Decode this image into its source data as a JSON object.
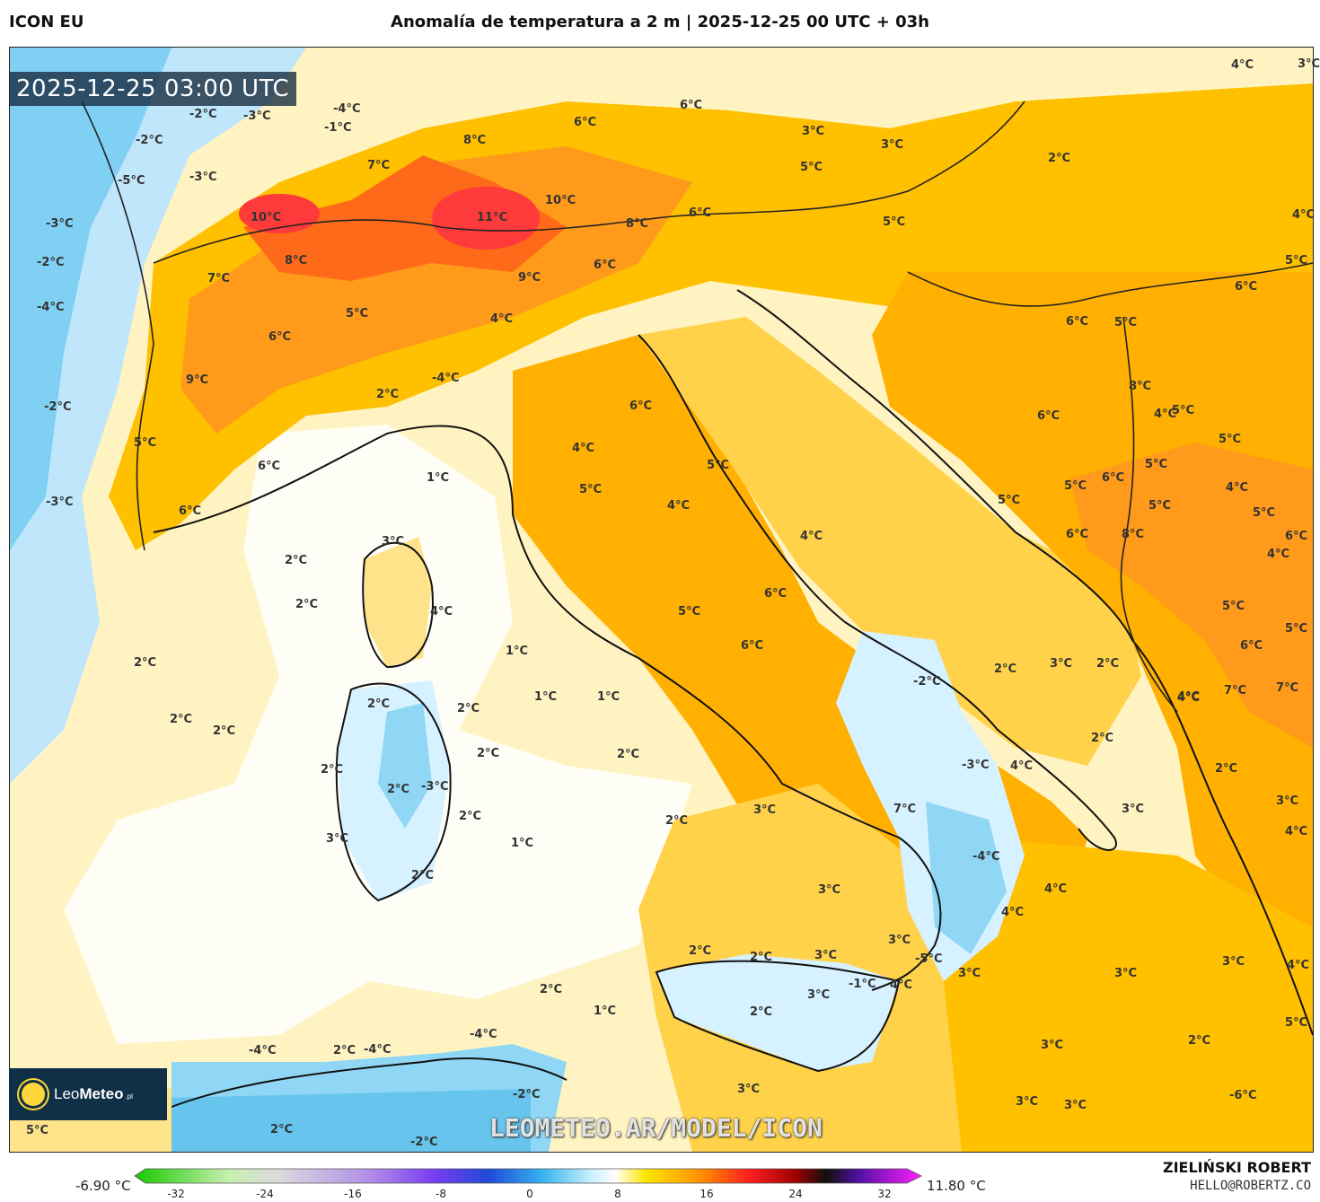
{
  "header": {
    "model": "ICON EU",
    "title": "Anomalía de temperatura a 2 m | 2025-12-25 00 UTC + 03h"
  },
  "map": {
    "valid_time": "2025-12-25 03:00 UTC",
    "watermark": "LEOMETEO.AR/MODEL/ICON",
    "labels": [
      {
        "text": "-4°C"
      },
      {
        "text": "-2°C"
      },
      {
        "text": "-3°C"
      },
      {
        "text": "-1°C"
      },
      {
        "text": "-2°C"
      },
      {
        "text": "-3°C"
      },
      {
        "text": "-5°C"
      },
      {
        "text": "-3°C"
      },
      {
        "text": "-2°C"
      },
      {
        "text": "-4°C"
      },
      {
        "text": "-2°C"
      },
      {
        "text": "-3°C"
      },
      {
        "text": "8°C"
      },
      {
        "text": "6°C"
      },
      {
        "text": "7°C"
      },
      {
        "text": "10°C"
      },
      {
        "text": "11°C"
      },
      {
        "text": "10°C"
      },
      {
        "text": "8°C"
      },
      {
        "text": "6°C"
      },
      {
        "text": "7°C"
      },
      {
        "text": "8°C"
      },
      {
        "text": "6°C"
      },
      {
        "text": "9°C"
      },
      {
        "text": "5°C"
      },
      {
        "text": "4°C"
      },
      {
        "text": "6°C"
      },
      {
        "text": "9°C"
      },
      {
        "text": "5°C"
      },
      {
        "text": "6°C"
      },
      {
        "text": "6°C"
      },
      {
        "text": "2°C"
      },
      {
        "text": "-4°C"
      },
      {
        "text": "6°C"
      },
      {
        "text": "4°C"
      },
      {
        "text": "5°C"
      },
      {
        "text": "5°C"
      },
      {
        "text": "4°C"
      },
      {
        "text": "4°C"
      },
      {
        "text": "6°C"
      },
      {
        "text": "5°C"
      },
      {
        "text": "6°C"
      },
      {
        "text": "1°C"
      },
      {
        "text": "3°C"
      },
      {
        "text": "2°C"
      },
      {
        "text": "2°C"
      },
      {
        "text": "4°C"
      },
      {
        "text": "2°C"
      },
      {
        "text": "1°C"
      },
      {
        "text": "2°C"
      },
      {
        "text": "2°C"
      },
      {
        "text": "2°C"
      },
      {
        "text": "2°C"
      },
      {
        "text": "1°C"
      },
      {
        "text": "1°C"
      },
      {
        "text": "2°C"
      },
      {
        "text": "2°C"
      },
      {
        "text": "2°C"
      },
      {
        "text": "-3°C"
      },
      {
        "text": "2°C"
      },
      {
        "text": "2°C"
      },
      {
        "text": "3°C"
      },
      {
        "text": "2°C"
      },
      {
        "text": "1°C"
      },
      {
        "text": "2°C"
      },
      {
        "text": "3°C"
      },
      {
        "text": "2°C"
      },
      {
        "text": "-2°C"
      },
      {
        "text": "3°C"
      },
      {
        "text": "2°C"
      },
      {
        "text": "3°C"
      },
      {
        "text": "-3°C"
      },
      {
        "text": "4°C"
      },
      {
        "text": "7°C"
      },
      {
        "text": "3°C"
      },
      {
        "text": "-4°C"
      },
      {
        "text": "4°C"
      },
      {
        "text": "4°C"
      },
      {
        "text": "3°C"
      },
      {
        "text": "3°C"
      },
      {
        "text": "3°C"
      },
      {
        "text": "-5°C"
      },
      {
        "text": "3°C"
      },
      {
        "text": "2°C"
      },
      {
        "text": "-1°C"
      },
      {
        "text": "4°C"
      },
      {
        "text": "3°C"
      },
      {
        "text": "2°C"
      },
      {
        "text": "2°C"
      },
      {
        "text": "1°C"
      },
      {
        "text": "2°C"
      },
      {
        "text": "3°C"
      },
      {
        "text": "2°C"
      },
      {
        "text": "3°C"
      },
      {
        "text": "3°C"
      },
      {
        "text": "3°C"
      },
      {
        "text": "-6°C"
      },
      {
        "text": "-4°C"
      },
      {
        "text": "2°C"
      },
      {
        "text": "-4°C"
      },
      {
        "text": "-4°C"
      },
      {
        "text": "-2°C"
      },
      {
        "text": "2°C"
      },
      {
        "text": "-2°C"
      },
      {
        "text": "5°C"
      },
      {
        "text": "3°C"
      },
      {
        "text": "4°C"
      },
      {
        "text": "5°C"
      },
      {
        "text": "4°C"
      },
      {
        "text": "3°C"
      },
      {
        "text": "2°C"
      },
      {
        "text": "2°C"
      },
      {
        "text": "4°C"
      },
      {
        "text": "5°C"
      },
      {
        "text": "4°C"
      },
      {
        "text": "6°C"
      },
      {
        "text": "5°C"
      },
      {
        "text": "4°C"
      },
      {
        "text": "5°C"
      },
      {
        "text": "5°C"
      },
      {
        "text": "5°C"
      },
      {
        "text": "6°C"
      },
      {
        "text": "5°C"
      },
      {
        "text": "6°C"
      },
      {
        "text": "5°C"
      },
      {
        "text": "8°C"
      },
      {
        "text": "6°C"
      },
      {
        "text": "5°C"
      },
      {
        "text": "6°C"
      },
      {
        "text": "5°C"
      },
      {
        "text": "6°C"
      },
      {
        "text": "5°C"
      },
      {
        "text": "7°C"
      },
      {
        "text": "7°C"
      },
      {
        "text": "4°C"
      },
      {
        "text": "8°C"
      },
      {
        "text": "5°C"
      },
      {
        "text": "6°C"
      },
      {
        "text": "4°C"
      },
      {
        "text": "4°C"
      },
      {
        "text": "4°C"
      },
      {
        "text": "3°C"
      },
      {
        "text": "2°C"
      },
      {
        "text": "3°C"
      },
      {
        "text": "3°C"
      },
      {
        "text": "6°C"
      },
      {
        "text": "5°C"
      },
      {
        "text": "5°C"
      }
    ]
  },
  "logo": {
    "brand_light": "Leo",
    "brand_bold": "Meteo",
    "suffix": ".pl"
  },
  "colorbar": {
    "min_label": "-6.90 °C",
    "max_label": "11.80 °C",
    "ticks": [
      "-32",
      "-24",
      "-16",
      "-8",
      "0",
      "8",
      "16",
      "24",
      "32"
    ]
  },
  "credits": {
    "author": "ZIELIŃSKI ROBERT",
    "email": "HELLO@ROBERTZ.CO"
  },
  "colors": {
    "sea_neutral": "#fff9d8",
    "warm_light": "#ffe38a",
    "warm": "#ffc000",
    "warm_strong": "#ff9a1a",
    "hot": "#ff5a1a",
    "hotter": "#ff2a3a",
    "cold_light": "#d6f1ff",
    "cold": "#8fd7f5",
    "cold_strong": "#55bdea"
  }
}
